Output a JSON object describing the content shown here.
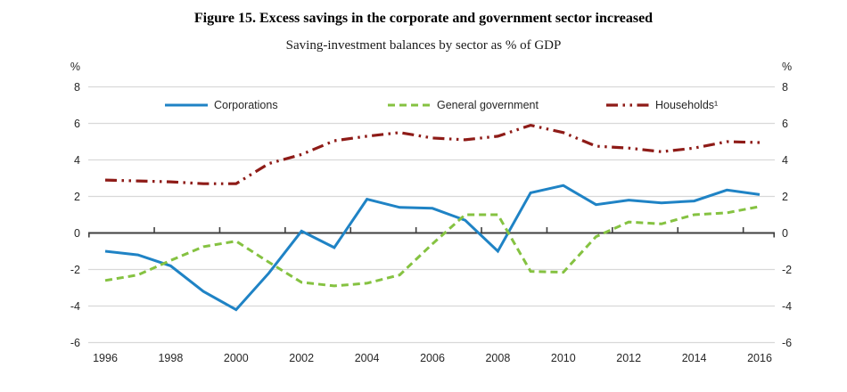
{
  "header": {
    "title": "Figure 15. Excess savings in the corporate and government sector increased",
    "subtitle": "Saving-investment balances by sector as % of GDP"
  },
  "axes": {
    "y_unit_label": "%",
    "y_ticks": [
      8,
      6,
      4,
      2,
      0,
      -2,
      -4,
      -6
    ],
    "x_tick_labels": [
      "1996",
      "1998",
      "2000",
      "2002",
      "2004",
      "2006",
      "2008",
      "2010",
      "2012",
      "2014",
      "2016"
    ]
  },
  "colors": {
    "gridline": "#d9d9d9",
    "zero_axis": "#3f3f3f",
    "axis_label": "#262626",
    "background": "#ffffff"
  },
  "chart_data": {
    "type": "line",
    "title": "Figure 15. Excess savings in the corporate and government sector increased",
    "subtitle": "Saving-investment balances by sector as % of GDP",
    "xlabel": "",
    "ylabel": "%",
    "ylim": [
      -6,
      8
    ],
    "grid": true,
    "legend_position": "top-inside",
    "x": [
      1996,
      1997,
      1998,
      1999,
      2000,
      2001,
      2002,
      2003,
      2004,
      2005,
      2006,
      2007,
      2008,
      2009,
      2010,
      2011,
      2012,
      2013,
      2014,
      2015,
      2016
    ],
    "series": [
      {
        "name": "Corporations",
        "color": "#1f83c5",
        "style": "solid",
        "values": [
          -1.0,
          -1.2,
          -1.8,
          -3.2,
          -4.2,
          -2.2,
          0.1,
          -0.8,
          1.85,
          1.4,
          1.35,
          0.7,
          -1.0,
          2.2,
          2.6,
          1.55,
          1.8,
          1.65,
          1.75,
          2.35,
          2.1
        ]
      },
      {
        "name": "General government",
        "color": "#85c241",
        "style": "dashed",
        "values": [
          -2.6,
          -2.3,
          -1.5,
          -0.75,
          -0.45,
          -1.6,
          -2.7,
          -2.9,
          -2.75,
          -2.3,
          -0.6,
          1.0,
          1.0,
          -2.1,
          -2.15,
          -0.2,
          0.6,
          0.5,
          1.0,
          1.1,
          1.45
        ]
      },
      {
        "name": "Households¹",
        "color": "#8e1b17",
        "style": "dash-dot-dot",
        "values": [
          2.9,
          2.85,
          2.8,
          2.7,
          2.7,
          3.8,
          4.3,
          5.05,
          5.3,
          5.5,
          5.2,
          5.1,
          5.3,
          5.9,
          5.5,
          4.75,
          4.65,
          4.45,
          4.65,
          5.0,
          4.95
        ]
      }
    ]
  }
}
